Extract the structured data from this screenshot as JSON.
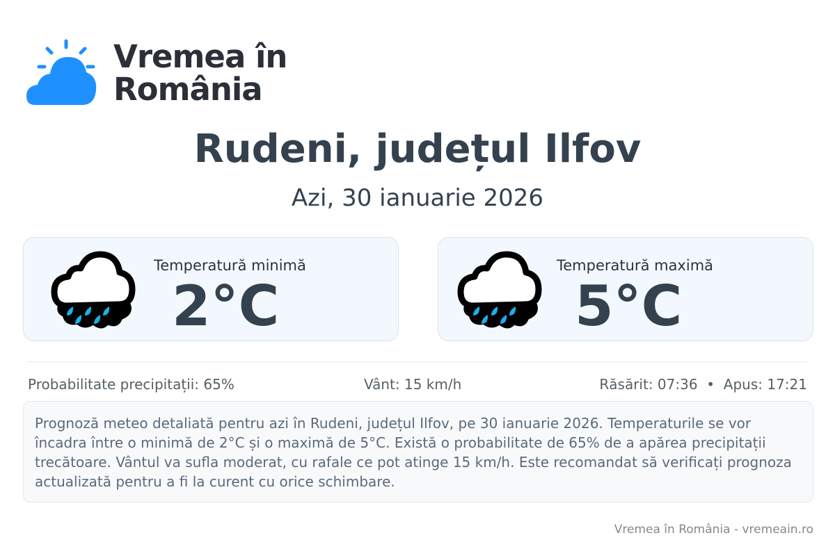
{
  "brand": {
    "line1": "Vremea în",
    "line2": "România",
    "icon": "sun-behind-cloud-icon",
    "color": "#1e90ff"
  },
  "title": "Rudeni, județul Ilfov",
  "date": "Azi, 30 ianuarie 2026",
  "cards": [
    {
      "label": "Temperatură minimă",
      "value": "2°C",
      "icon": "rain-cloud-icon"
    },
    {
      "label": "Temperatură maximă",
      "value": "5°C",
      "icon": "rain-cloud-icon"
    }
  ],
  "info": {
    "precip": "Probabilitate precipitații: 65%",
    "wind": "Vânt: 15 km/h",
    "sun": "Răsărit: 07:36  •  Apus: 17:21"
  },
  "description": "Prognoză meteo detaliată pentru azi în Rudeni, județul Ilfov, pe 30 ianuarie 2026. Temperaturile se vor încadra între o minimă de 2°C și o maximă de 5°C. Există o probabilitate de 65% de a apărea precipitații trecătoare. Vântul va sufla moderat, cu rafale ce pot atinge 15 km/h. Este recomandat să verificați prognoza actualizată pentru a fi la curent cu orice schimbare.",
  "footer": "Vremea în România - vremeain.ro"
}
